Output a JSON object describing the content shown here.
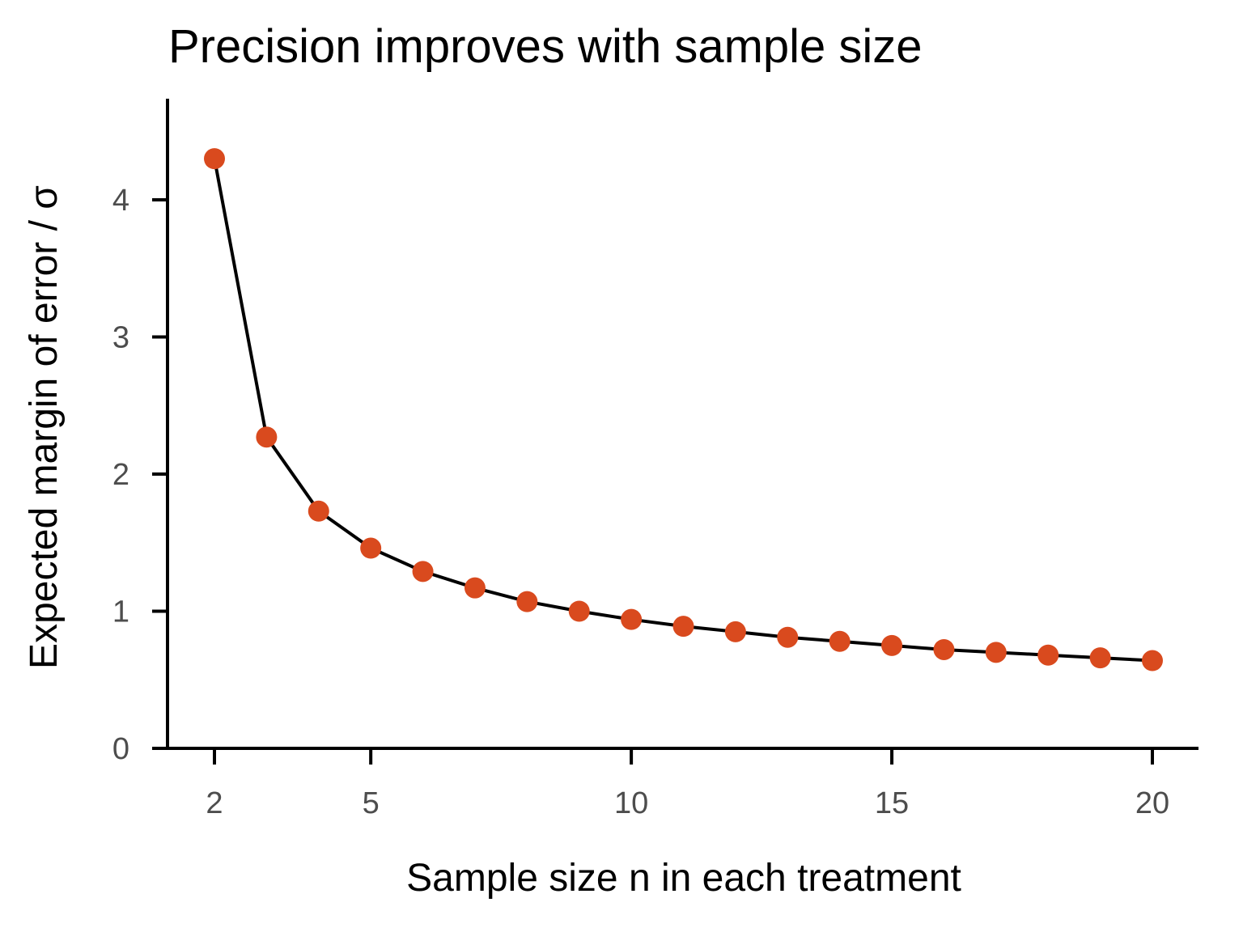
{
  "chart_data": {
    "type": "line",
    "title": "Precision improves with sample size",
    "xlabel": "Sample size n in each treatment",
    "ylabel": "Expected margin of error / σ",
    "x": [
      2,
      3,
      4,
      5,
      6,
      7,
      8,
      9,
      10,
      11,
      12,
      13,
      14,
      15,
      16,
      17,
      18,
      19,
      20
    ],
    "series": [
      {
        "name": "margin of error",
        "values": [
          4.3,
          2.27,
          1.73,
          1.46,
          1.29,
          1.17,
          1.07,
          1.0,
          0.94,
          0.89,
          0.85,
          0.81,
          0.78,
          0.75,
          0.72,
          0.7,
          0.68,
          0.66,
          0.64
        ],
        "line_color": "#000000",
        "point_color": "#d94a1e"
      }
    ],
    "xticks": [
      2,
      5,
      10,
      15,
      20
    ],
    "xtick_labels": [
      "2",
      "5",
      "10",
      "15",
      "20"
    ],
    "yticks": [
      0,
      1,
      2,
      3,
      4
    ],
    "ytick_labels": [
      "0",
      "1",
      "2",
      "3",
      "4"
    ],
    "xlim": [
      1.1,
      20.9
    ],
    "ylim": [
      0,
      4.73
    ],
    "grid": false,
    "legend": "none"
  }
}
